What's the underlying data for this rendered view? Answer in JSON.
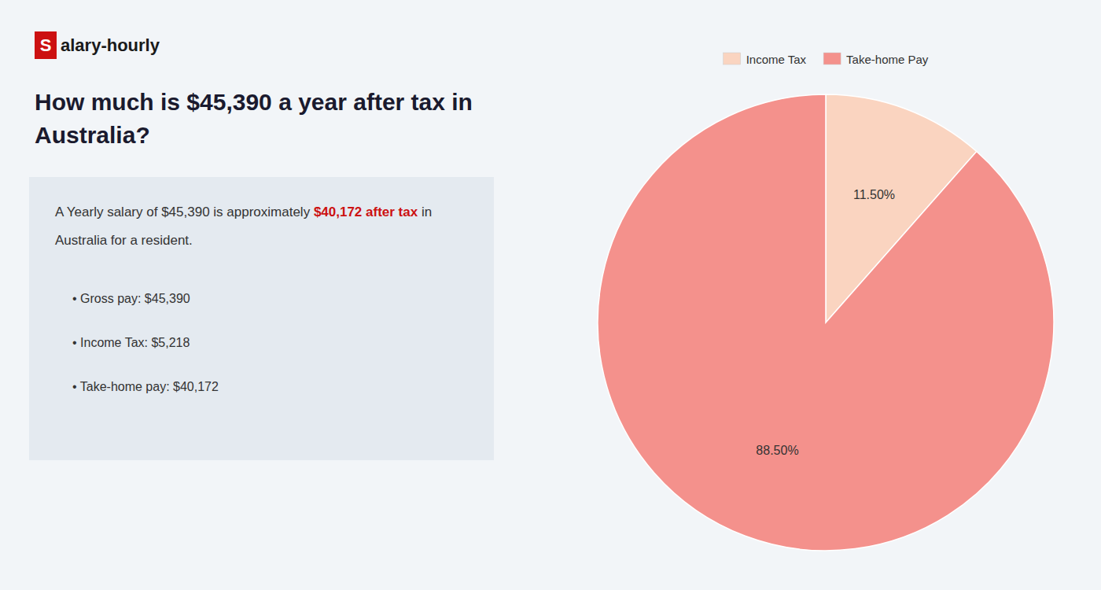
{
  "chart_data": {
    "type": "pie",
    "title": [
      "How much is $45,390 a year after tax in",
      "Australia?"
    ],
    "annotations": [
      {
        "text": "S",
        "color": "#cc1111"
      },
      {
        "text": "alary-hourly"
      },
      {
        "text": "A Yearly salary of $45,390 is approximately "
      },
      {
        "text": "$40,172 after tax",
        "color": "#cc1111"
      },
      {
        "text": " in"
      },
      {
        "text": "Australia for a resident."
      },
      {
        "text": "• Gross pay: $45,390"
      },
      {
        "text": "• Income Tax: $5,218"
      },
      {
        "text": "• Take-home pay: $40,172"
      }
    ],
    "categories": [
      "Income Tax",
      "Take-home Pay"
    ],
    "values": [
      11.5,
      88.5
    ],
    "value_labels": [
      "11.50%",
      "88.50%"
    ],
    "colors": [
      "#fad4c0",
      "#f4918c"
    ],
    "data_labels": true,
    "legend": "top"
  }
}
